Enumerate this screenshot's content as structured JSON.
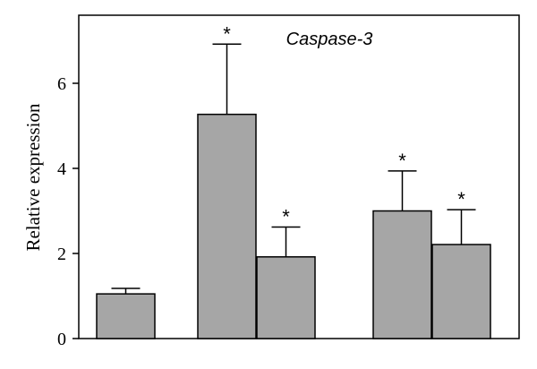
{
  "chart_data": {
    "type": "bar",
    "title": "Caspase-3",
    "ylabel": "Relative expression",
    "xlabel": "",
    "ylim": [
      0,
      7.6
    ],
    "yticks": [
      0,
      2,
      4,
      6
    ],
    "grid": false,
    "legend": "none",
    "bar_color": "#a6a6a6",
    "edge_color": "#000000",
    "bars": [
      {
        "group": 1,
        "value": 1.05,
        "error": 0.13,
        "significance": ""
      },
      {
        "group": 2,
        "value": 5.27,
        "error": 1.65,
        "significance": "*"
      },
      {
        "group": 2,
        "value": 1.92,
        "error": 0.7,
        "significance": "*"
      },
      {
        "group": 3,
        "value": 3.0,
        "error": 0.94,
        "significance": "*"
      },
      {
        "group": 3,
        "value": 2.21,
        "error": 0.82,
        "significance": "*"
      }
    ]
  }
}
